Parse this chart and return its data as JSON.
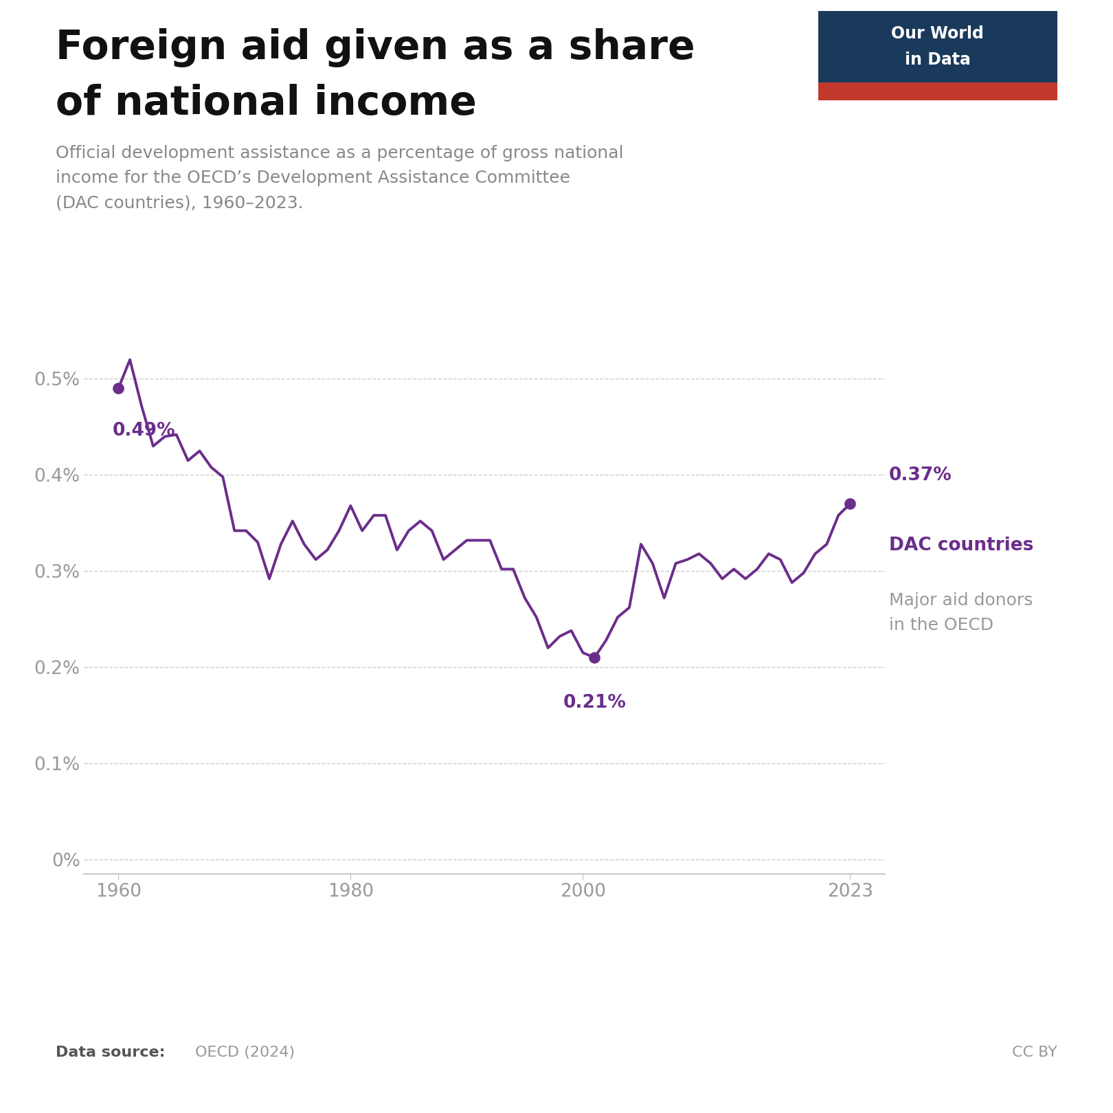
{
  "title_line1": "Foreign aid given as a share",
  "title_line2": "of national income",
  "subtitle": "Official development assistance as a percentage of gross national\nincome for the OECD’s Development Assistance Committee\n(DAC countries), 1960–2023.",
  "line_color": "#6B2D8B",
  "background_color": "#ffffff",
  "dac_label_bold": "DAC countries",
  "dac_label_sub": "Major aid donors\nin the OECD",
  "years": [
    1960,
    1961,
    1962,
    1963,
    1964,
    1965,
    1966,
    1967,
    1968,
    1969,
    1970,
    1971,
    1972,
    1973,
    1974,
    1975,
    1976,
    1977,
    1978,
    1979,
    1980,
    1981,
    1982,
    1983,
    1984,
    1985,
    1986,
    1987,
    1988,
    1989,
    1990,
    1991,
    1992,
    1993,
    1994,
    1995,
    1996,
    1997,
    1998,
    1999,
    2000,
    2001,
    2002,
    2003,
    2004,
    2005,
    2006,
    2007,
    2008,
    2009,
    2010,
    2011,
    2012,
    2013,
    2014,
    2015,
    2016,
    2017,
    2018,
    2019,
    2020,
    2021,
    2022,
    2023
  ],
  "values": [
    0.49,
    0.52,
    0.472,
    0.43,
    0.44,
    0.442,
    0.415,
    0.425,
    0.408,
    0.398,
    0.342,
    0.342,
    0.33,
    0.292,
    0.328,
    0.352,
    0.328,
    0.312,
    0.322,
    0.342,
    0.368,
    0.342,
    0.358,
    0.358,
    0.322,
    0.342,
    0.352,
    0.342,
    0.312,
    0.322,
    0.332,
    0.332,
    0.332,
    0.302,
    0.302,
    0.272,
    0.252,
    0.22,
    0.232,
    0.238,
    0.215,
    0.21,
    0.228,
    0.252,
    0.262,
    0.328,
    0.308,
    0.272,
    0.308,
    0.312,
    0.318,
    0.308,
    0.292,
    0.302,
    0.292,
    0.302,
    0.318,
    0.312,
    0.288,
    0.298,
    0.318,
    0.328,
    0.358,
    0.37
  ],
  "highlight_years": [
    1960,
    2001,
    2023
  ],
  "highlight_values": [
    0.49,
    0.21,
    0.37
  ],
  "highlight_labels": [
    "0.49%",
    "0.21%",
    "0.37%"
  ],
  "yticks": [
    0.0,
    0.1,
    0.2,
    0.3,
    0.4,
    0.5
  ],
  "ytick_labels": [
    "0%",
    "0.1%",
    "0.2%",
    "0.3%",
    "0.4%",
    "0.5%"
  ],
  "xticks": [
    1960,
    1980,
    2000,
    2023
  ],
  "xlim": [
    1957,
    2026
  ],
  "ylim": [
    -0.015,
    0.57
  ],
  "logo_bg_color": "#1a3a5c",
  "logo_red_color": "#c0392b"
}
